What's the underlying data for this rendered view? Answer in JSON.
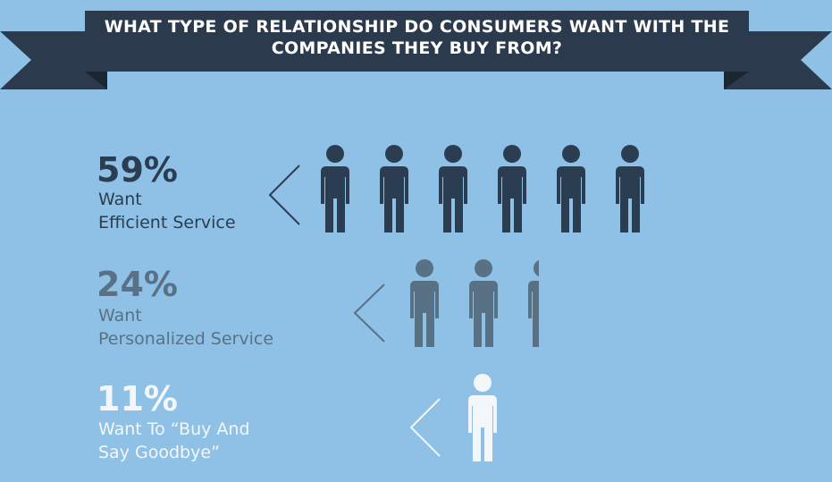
{
  "chart_data": {
    "type": "pictograph",
    "title": "WHAT TYPE OF RELATIONSHIP DO CONSUMERS WANT WITH THE\nCOMPANIES THEY BUY FROM?",
    "categories": [
      "Want\nEfficient Service",
      "Want\nPersonalized Service",
      "Want To “Buy And\nSay Goodbye”"
    ],
    "values": [
      59,
      24,
      11
    ],
    "value_labels": [
      "59%",
      "24%",
      "11%"
    ],
    "colors": [
      "#2b3d50",
      "#587184",
      "#f4f7f9"
    ]
  }
}
